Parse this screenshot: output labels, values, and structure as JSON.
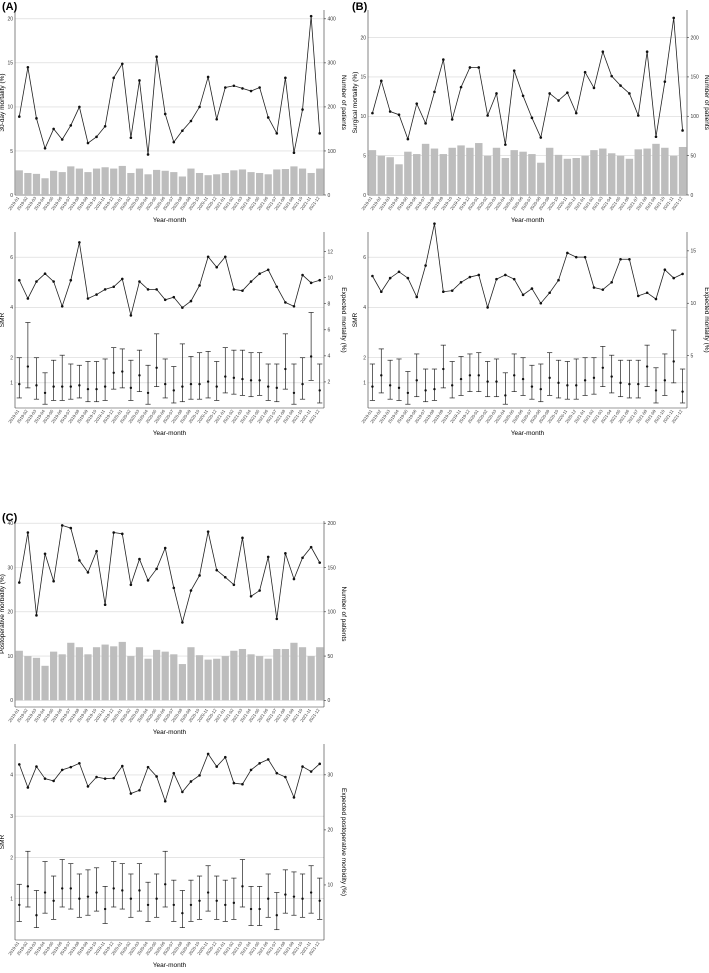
{
  "months": [
    "2019-01",
    "2019-02",
    "2019-03",
    "2019-04",
    "2019-05",
    "2019-06",
    "2019-07",
    "2019-08",
    "2019-09",
    "2019-10",
    "2019-11",
    "2019-12",
    "2020-01",
    "2020-02",
    "2020-03",
    "2020-04",
    "2020-05",
    "2020-06",
    "2020-07",
    "2020-08",
    "2020-09",
    "2020-10",
    "2020-11",
    "2020-12",
    "2021-01",
    "2021-02",
    "2021-03",
    "2021-04",
    "2021-05",
    "2021-06",
    "2021-07",
    "2021-08",
    "2021-09",
    "2021-10",
    "2021-11",
    "2021-12"
  ],
  "chart_data": [
    {
      "id": "A-top",
      "panel_label": "(A)",
      "type": "bar+line",
      "xlabel": "Year-month",
      "ylabel": "30-day mortality (%)",
      "ylabel_right": "Number of patients",
      "ylim": [
        0,
        21
      ],
      "yticks": [
        0,
        5,
        10,
        15,
        20
      ],
      "y2lim": [
        0,
        420
      ],
      "y2ticks": [
        0,
        100,
        200,
        300,
        400
      ],
      "line_values": [
        8.9,
        14.5,
        8.7,
        5.3,
        7.5,
        6.3,
        7.9,
        10.0,
        5.9,
        6.6,
        7.8,
        13.3,
        14.9,
        6.5,
        13.0,
        4.6,
        15.7,
        9.2,
        6.0,
        7.3,
        8.4,
        10.0,
        13.4,
        8.6,
        12.2,
        12.4,
        12.1,
        11.8,
        12.2,
        8.8,
        7.0,
        13.3,
        4.8,
        9.7,
        20.3,
        7.0
      ],
      "bar_values": [
        56,
        50,
        48,
        38,
        55,
        52,
        65,
        60,
        52,
        60,
        63,
        60,
        66,
        50,
        60,
        47,
        57,
        55,
        52,
        42,
        60,
        50,
        45,
        47,
        50,
        56,
        58,
        52,
        50,
        47,
        58,
        59,
        65,
        60,
        50,
        60
      ]
    },
    {
      "id": "A-bottom",
      "type": "errorbar+line",
      "xlabel": "Year-month",
      "ylabel": "SMR",
      "ylabel_right": "Expected mortality (%)",
      "ylim": [
        0,
        7
      ],
      "yticks": [
        1,
        2,
        4,
        6
      ],
      "y2lim": [
        0,
        13.5
      ],
      "y2ticks": [
        2,
        4,
        6,
        8,
        10,
        12
      ],
      "line_values": [
        9.8,
        8.4,
        9.7,
        10.3,
        9.7,
        7.8,
        9.8,
        12.7,
        8.4,
        8.7,
        9.1,
        9.3,
        9.9,
        7.1,
        9.7,
        9.1,
        9.1,
        8.3,
        8.5,
        7.7,
        8.2,
        9.4,
        11.6,
        10.8,
        11.6,
        9.1,
        9.0,
        9.7,
        10.3,
        10.6,
        9.3,
        8.1,
        7.8,
        10.2,
        9.6,
        9.8
      ],
      "smr": [
        0.95,
        1.65,
        0.9,
        0.6,
        0.85,
        0.85,
        0.85,
        0.9,
        0.75,
        0.75,
        0.85,
        1.4,
        1.45,
        0.8,
        1.3,
        0.6,
        1.6,
        0.95,
        0.7,
        0.85,
        0.95,
        0.95,
        1.05,
        0.85,
        1.25,
        1.2,
        1.15,
        1.1,
        1.1,
        0.85,
        0.8,
        1.55,
        0.6,
        0.95,
        2.05,
        0.7
      ],
      "lower": [
        0.4,
        0.8,
        0.35,
        0.15,
        0.3,
        0.3,
        0.35,
        0.4,
        0.25,
        0.25,
        0.3,
        0.75,
        0.8,
        0.3,
        0.65,
        0.15,
        0.85,
        0.4,
        0.2,
        0.25,
        0.35,
        0.35,
        0.4,
        0.3,
        0.6,
        0.55,
        0.5,
        0.45,
        0.5,
        0.3,
        0.25,
        0.75,
        0.15,
        0.35,
        1.1,
        0.2
      ],
      "upper": [
        2.0,
        3.4,
        2.0,
        1.4,
        1.9,
        2.1,
        1.75,
        1.7,
        1.85,
        1.85,
        1.95,
        2.4,
        2.35,
        1.9,
        2.3,
        1.7,
        2.95,
        1.95,
        1.65,
        2.55,
        2.05,
        2.2,
        2.25,
        1.85,
        2.4,
        2.3,
        2.3,
        2.2,
        2.2,
        1.75,
        1.75,
        2.95,
        1.75,
        2.0,
        3.8,
        1.75
      ]
    },
    {
      "id": "B-top",
      "panel_label": "(B)",
      "type": "bar+line",
      "xlabel": "Year-month",
      "ylabel": "Surgical mortality (%)",
      "ylabel_right": "Number of patients",
      "ylim": [
        0,
        23.5
      ],
      "yticks": [
        0,
        5,
        10,
        15,
        20
      ],
      "y2lim": [
        0,
        235
      ],
      "y2ticks": [
        0,
        50,
        100,
        150,
        200
      ],
      "line_values": [
        10.4,
        14.5,
        10.6,
        10.2,
        7.1,
        11.6,
        9.1,
        13.1,
        17.2,
        9.6,
        13.7,
        16.2,
        16.2,
        10.1,
        12.9,
        6.4,
        15.8,
        12.6,
        9.8,
        7.3,
        12.9,
        12.0,
        13.0,
        10.4,
        15.6,
        13.6,
        18.2,
        15.1,
        13.9,
        12.9,
        10.1,
        18.2,
        7.4,
        14.4,
        22.5,
        8.2
      ],
      "bar_values": [
        57,
        50,
        48,
        39,
        55,
        52,
        65,
        59,
        52,
        60,
        63,
        60,
        66,
        50,
        60,
        47,
        57,
        55,
        52,
        41,
        60,
        51,
        46,
        47,
        50,
        57,
        59,
        53,
        50,
        46,
        58,
        59,
        65,
        60,
        50,
        61
      ]
    },
    {
      "id": "B-bottom",
      "type": "errorbar+line",
      "xlabel": "Year-month",
      "ylabel": "SMR",
      "ylabel_right": "Expected mortality (%)",
      "ylim": [
        0,
        7
      ],
      "yticks": [
        1,
        2,
        4,
        6
      ],
      "y2lim": [
        0,
        16.8
      ],
      "y2ticks": [
        5,
        10,
        15
      ],
      "line_values": [
        12.6,
        11.1,
        12.4,
        13.0,
        12.4,
        10.6,
        13.6,
        17.6,
        11.1,
        11.2,
        12.0,
        12.5,
        12.7,
        9.6,
        12.3,
        12.7,
        12.3,
        10.8,
        11.4,
        10.0,
        11.0,
        12.2,
        14.8,
        14.4,
        14.4,
        11.5,
        11.3,
        12.0,
        14.2,
        14.2,
        10.7,
        11.0,
        10.4,
        13.2,
        12.4,
        12.8
      ],
      "smr": [
        0.85,
        1.3,
        0.9,
        0.8,
        0.6,
        1.1,
        0.7,
        0.75,
        1.55,
        0.9,
        1.15,
        1.3,
        1.3,
        1.05,
        1.05,
        0.5,
        1.3,
        1.15,
        0.85,
        0.75,
        1.2,
        1.0,
        0.9,
        0.9,
        1.1,
        1.2,
        1.6,
        1.25,
        1.0,
        0.95,
        0.95,
        1.65,
        0.7,
        1.1,
        1.85,
        0.65
      ],
      "lower": [
        0.3,
        0.6,
        0.35,
        0.3,
        0.15,
        0.45,
        0.25,
        0.3,
        0.8,
        0.4,
        0.5,
        0.65,
        0.65,
        0.45,
        0.45,
        0.15,
        0.65,
        0.5,
        0.35,
        0.25,
        0.5,
        0.4,
        0.35,
        0.35,
        0.5,
        0.55,
        0.85,
        0.6,
        0.45,
        0.4,
        0.4,
        0.85,
        0.2,
        0.5,
        1.0,
        0.2
      ],
      "upper": [
        1.75,
        2.35,
        1.9,
        1.95,
        1.45,
        2.15,
        1.55,
        1.55,
        2.5,
        1.85,
        2.05,
        2.15,
        2.2,
        1.85,
        1.95,
        1.4,
        2.15,
        2.0,
        1.7,
        1.75,
        2.2,
        1.9,
        1.85,
        1.95,
        2.0,
        2.0,
        2.45,
        2.1,
        1.9,
        1.9,
        1.9,
        2.5,
        1.6,
        2.15,
        3.1,
        1.55
      ]
    },
    {
      "id": "C-top",
      "panel_label": "(C)",
      "type": "bar+line",
      "xlabel": "Year-month",
      "ylabel": "Postoperative morbidity (%)",
      "ylabel_right": "Number of patients",
      "ylim": [
        -1.5,
        40.5
      ],
      "yticks": [
        0,
        10,
        20,
        30,
        40
      ],
      "y2lim": [
        -7.5,
        202.5
      ],
      "y2ticks": [
        0,
        50,
        100,
        150,
        200
      ],
      "line_values": [
        26.6,
        37.9,
        19.2,
        33.1,
        26.9,
        39.5,
        38.9,
        31.6,
        28.9,
        33.7,
        21.6,
        37.9,
        37.6,
        26.1,
        31.9,
        27.1,
        29.7,
        34.4,
        25.4,
        17.6,
        24.8,
        28.2,
        38.1,
        29.4,
        27.8,
        26.1,
        36.7,
        23.5,
        24.8,
        32.4,
        18.4,
        33.2,
        27.4,
        32.2,
        34.6,
        31.1
      ],
      "bar_values": [
        56,
        50,
        48,
        39,
        55,
        52,
        65,
        60,
        52,
        60,
        63,
        61,
        66,
        50,
        60,
        47,
        57,
        55,
        52,
        41,
        60,
        51,
        46,
        47,
        50,
        56,
        58,
        52,
        50,
        47,
        58,
        58,
        65,
        60,
        50,
        60
      ]
    },
    {
      "id": "C-bottom",
      "type": "errorbar+line",
      "xlabel": "Year-month",
      "ylabel": "SMR",
      "ylabel_right": "Expected postoperative morbidity (%)",
      "ylim": [
        0,
        4.75
      ],
      "yticks": [
        1,
        2,
        3,
        4
      ],
      "y2lim": [
        0,
        35.6
      ],
      "y2ticks": [
        10,
        20,
        30
      ],
      "line_values": [
        31.9,
        27.7,
        31.5,
        29.3,
        28.9,
        30.9,
        31.4,
        32.1,
        27.9,
        29.6,
        29.3,
        29.4,
        31.6,
        26.6,
        27.2,
        31.4,
        29.7,
        25.2,
        30.3,
        26.9,
        28.8,
        29.9,
        33.8,
        31.5,
        33.2,
        28.5,
        28.3,
        30.9,
        32.1,
        32.8,
        30.3,
        29.6,
        25.9,
        31.5,
        30.6,
        32.0
      ],
      "smr": [
        0.85,
        1.3,
        0.6,
        1.15,
        0.95,
        1.25,
        1.25,
        1.0,
        1.05,
        1.15,
        0.75,
        1.25,
        1.2,
        1.0,
        1.2,
        0.85,
        1.0,
        1.35,
        0.85,
        0.65,
        0.85,
        0.95,
        1.15,
        0.95,
        0.85,
        0.9,
        1.3,
        0.75,
        0.75,
        1.0,
        0.6,
        1.1,
        1.05,
        1.0,
        1.15,
        0.95
      ],
      "lower": [
        0.45,
        0.8,
        0.3,
        0.65,
        0.5,
        0.8,
        0.75,
        0.55,
        0.6,
        0.7,
        0.4,
        0.8,
        0.75,
        0.55,
        0.7,
        0.45,
        0.55,
        0.8,
        0.45,
        0.3,
        0.45,
        0.5,
        0.7,
        0.5,
        0.45,
        0.5,
        0.8,
        0.35,
        0.35,
        0.55,
        0.25,
        0.65,
        0.6,
        0.55,
        0.65,
        0.5
      ],
      "upper": [
        1.35,
        2.15,
        1.2,
        1.9,
        1.55,
        1.95,
        1.85,
        1.6,
        1.7,
        1.75,
        1.3,
        1.9,
        1.85,
        1.6,
        1.85,
        1.4,
        1.6,
        2.15,
        1.45,
        1.2,
        1.45,
        1.55,
        1.8,
        1.55,
        1.45,
        1.5,
        1.95,
        1.3,
        1.3,
        1.6,
        1.15,
        1.7,
        1.65,
        1.6,
        1.8,
        1.5
      ]
    }
  ]
}
